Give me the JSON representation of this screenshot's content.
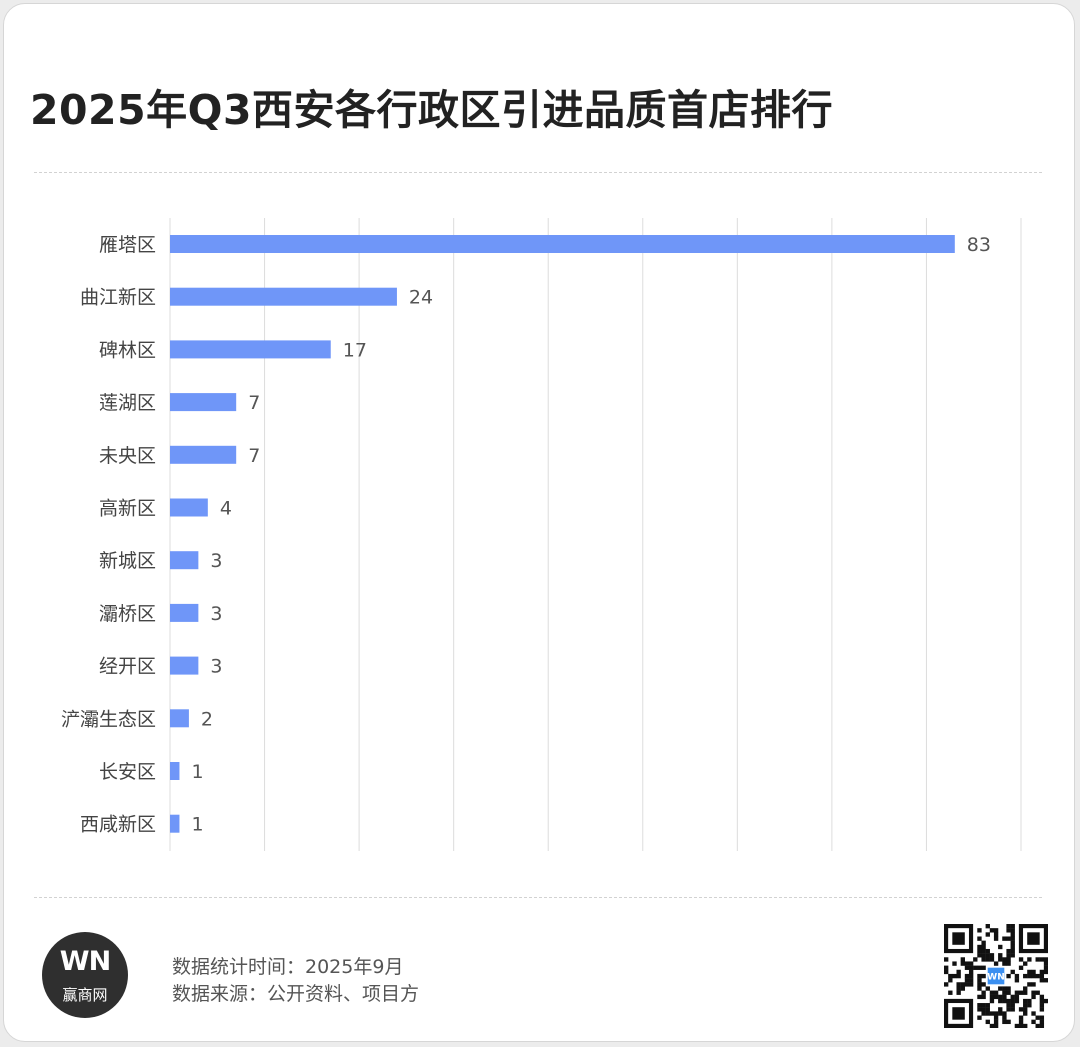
{
  "title": "2025年Q3西安各行政区引进品质首店排行",
  "chart_data": {
    "type": "bar",
    "orientation": "horizontal",
    "categories": [
      "雁塔区",
      "曲江新区",
      "碑林区",
      "莲湖区",
      "未央区",
      "高新区",
      "新城区",
      "灞桥区",
      "经开区",
      "浐灞生态区",
      "长安区",
      "西咸新区"
    ],
    "values": [
      83,
      24,
      17,
      7,
      7,
      4,
      3,
      3,
      3,
      2,
      1,
      1
    ],
    "xlim": [
      0,
      90
    ],
    "grid": true,
    "bar_color": "#6f96f8",
    "title": "2025年Q3西安各行政区引进品质首店排行",
    "xlabel": "",
    "ylabel": ""
  },
  "footer": {
    "logo_mark": "WN",
    "logo_text": "赢商网",
    "date_line": "数据统计时间：2025年9月",
    "source_line": "数据来源：公开资料、项目方"
  },
  "qr_center_text": "WN"
}
